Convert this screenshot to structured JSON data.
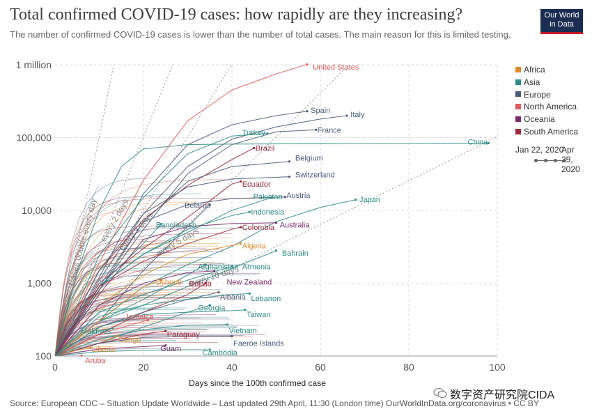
{
  "title": "Total confirmed COVID-19 cases: how rapidly are they increasing?",
  "subtitle": "The number of confirmed COVID-19 cases is lower than the number of total cases. The main reason for this is limited testing.",
  "logo": {
    "line1": "Our World",
    "line2": "in Data"
  },
  "legend": [
    {
      "name": "Africa",
      "color": "#e18b2b"
    },
    {
      "name": "Asia",
      "color": "#2e8c85"
    },
    {
      "name": "Europe",
      "color": "#4c5a7a"
    },
    {
      "name": "North America",
      "color": "#dd5a5a"
    },
    {
      "name": "Oceania",
      "color": "#7a2d6c"
    },
    {
      "name": "South America",
      "color": "#9a2a3b"
    }
  ],
  "timeline": {
    "start": "Jan 22, 2020",
    "end": "Apr 29, 2020"
  },
  "source": "Source: European CDC – Situation Update Worldwide – Last updated 29th April, 11:30 (London time) OurWorldInData.org/coronavirus • CC BY",
  "watermark": "数字资产研究院CIDA",
  "chart_data": {
    "type": "line",
    "title": "Total confirmed COVID-19 cases: how rapidly are they increasing?",
    "xlabel": "Days since the 100th confirmed case",
    "ylabel": "",
    "xlim": [
      0,
      100
    ],
    "ylim": [
      100,
      1000000
    ],
    "yscale": "log",
    "x_ticks": [
      "0",
      "20",
      "40",
      "60",
      "80",
      "100"
    ],
    "x_tick_values": [
      0,
      20,
      40,
      60,
      80,
      100
    ],
    "y_ticks": [
      "100",
      "1,000",
      "10,000",
      "100,000",
      "1 million"
    ],
    "y_tick_values": [
      100,
      1000,
      10000,
      100000,
      1000000
    ],
    "doubling_lines": [
      {
        "label": "Cases double every day",
        "days": 1
      },
      {
        "label": "every 2 days",
        "days": 2
      },
      {
        "label": "every 3 days",
        "days": 3
      },
      {
        "label": "every 5 days",
        "days": 5
      },
      {
        "label": "every 10 days",
        "days": 10
      }
    ],
    "series": [
      {
        "name": "United States",
        "region": "North America",
        "color": "#dd5a5a",
        "x": [
          0,
          10,
          20,
          30,
          40,
          50,
          57
        ],
        "y": [
          100,
          1900,
          26000,
          170000,
          450000,
          750000,
          1010000
        ],
        "label_x": 58,
        "label_y": 940000
      },
      {
        "name": "Spain",
        "region": "Europe",
        "color": "#4c5a7a",
        "x": [
          0,
          10,
          20,
          30,
          40,
          50,
          57
        ],
        "y": [
          100,
          1200,
          17000,
          80000,
          150000,
          200000,
          230000
        ],
        "label_x": 57.5,
        "label_y": 240000
      },
      {
        "name": "Italy",
        "region": "Europe",
        "color": "#4c5a7a",
        "x": [
          0,
          10,
          20,
          30,
          40,
          50,
          60,
          66
        ],
        "y": [
          100,
          1100,
          9000,
          40000,
          95000,
          140000,
          180000,
          200000
        ],
        "label_x": 66.5,
        "label_y": 210000
      },
      {
        "name": "France",
        "region": "Europe",
        "color": "#4c5a7a",
        "x": [
          0,
          10,
          20,
          30,
          40,
          50,
          59
        ],
        "y": [
          100,
          800,
          5500,
          32000,
          80000,
          120000,
          128000
        ],
        "label_x": 59,
        "label_y": 128000
      },
      {
        "name": "Turkey",
        "region": "Asia",
        "color": "#2e8c85",
        "x": [
          0,
          10,
          20,
          30,
          40,
          48
        ],
        "y": [
          100,
          2400,
          15000,
          60000,
          105000,
          114000
        ],
        "label_x": 42,
        "label_y": 118000
      },
      {
        "name": "Brazil",
        "region": "South America",
        "color": "#9a2a3b",
        "x": [
          0,
          10,
          20,
          30,
          40,
          45
        ],
        "y": [
          100,
          1500,
          7500,
          22000,
          50000,
          72000
        ],
        "label_x": 45,
        "label_y": 72000
      },
      {
        "name": "China",
        "region": "Asia",
        "color": "#2e8c85",
        "x": [
          0,
          5,
          10,
          15,
          20,
          30,
          40,
          60,
          80,
          98
        ],
        "y": [
          100,
          1400,
          10000,
          40000,
          70000,
          80000,
          81500,
          82500,
          83000,
          83900
        ],
        "label_x": 93,
        "label_y": 88000
      },
      {
        "name": "Belgium",
        "region": "Europe",
        "color": "#4c5a7a",
        "x": [
          0,
          10,
          20,
          30,
          40,
          53
        ],
        "y": [
          100,
          800,
          7000,
          25000,
          40000,
          47000
        ],
        "label_x": 54,
        "label_y": 53000
      },
      {
        "name": "Switzerland",
        "region": "Europe",
        "color": "#4c5a7a",
        "x": [
          0,
          10,
          20,
          30,
          40,
          53
        ],
        "y": [
          100,
          1500,
          9000,
          21000,
          27000,
          29000
        ],
        "label_x": 54,
        "label_y": 31000
      },
      {
        "name": "Ecuador",
        "region": "South America",
        "color": "#9a2a3b",
        "x": [
          0,
          10,
          20,
          30,
          40,
          42
        ],
        "y": [
          100,
          1000,
          3000,
          8000,
          23000,
          25000
        ],
        "label_x": 42,
        "label_y": 23000
      },
      {
        "name": "Pakistan",
        "region": "Asia",
        "color": "#2e8c85",
        "x": [
          0,
          10,
          20,
          30,
          40,
          49
        ],
        "y": [
          100,
          900,
          2500,
          5000,
          10000,
          15000
        ],
        "label_x": 44.5,
        "label_y": 15500
      },
      {
        "name": "Austria",
        "region": "Europe",
        "color": "#4c5a7a",
        "x": [
          0,
          10,
          20,
          30,
          40,
          52
        ],
        "y": [
          100,
          900,
          7000,
          12000,
          14500,
          15300
        ],
        "label_x": 52,
        "label_y": 16200
      },
      {
        "name": "Japan",
        "region": "Asia",
        "color": "#2e8c85",
        "x": [
          0,
          10,
          20,
          30,
          40,
          50,
          60,
          68
        ],
        "y": [
          100,
          300,
          900,
          1800,
          3200,
          7000,
          11000,
          14000
        ],
        "label_x": 68.5,
        "label_y": 14200
      },
      {
        "name": "Belarus",
        "region": "Europe",
        "color": "#4c5a7a",
        "x": [
          0,
          10,
          20,
          30,
          35
        ],
        "y": [
          100,
          300,
          1500,
          6000,
          12000
        ],
        "label_x": 29,
        "label_y": 11800
      },
      {
        "name": "Indonesia",
        "region": "Asia",
        "color": "#2e8c85",
        "x": [
          0,
          10,
          20,
          30,
          40,
          44
        ],
        "y": [
          100,
          900,
          2500,
          5500,
          8500,
          9500
        ],
        "label_x": 44,
        "label_y": 9600
      },
      {
        "name": "Bangladesh",
        "region": "Asia",
        "color": "#2e8c85",
        "x": [
          0,
          10,
          20,
          24
        ],
        "y": [
          100,
          900,
          3500,
          6500
        ],
        "label_x": 22.5,
        "label_y": 6400
      },
      {
        "name": "Colombia",
        "region": "South America",
        "color": "#9a2a3b",
        "x": [
          0,
          10,
          20,
          30,
          40,
          42
        ],
        "y": [
          100,
          900,
          2000,
          3500,
          5500,
          5900
        ],
        "label_x": 42,
        "label_y": 5900
      },
      {
        "name": "Australia",
        "region": "Oceania",
        "color": "#7a2d6c",
        "x": [
          0,
          10,
          20,
          30,
          40,
          50
        ],
        "y": [
          100,
          700,
          4000,
          6000,
          6600,
          6750
        ],
        "label_x": 50.5,
        "label_y": 6350
      },
      {
        "name": "Algeria",
        "region": "Africa",
        "color": "#e18b2b",
        "x": [
          0,
          10,
          20,
          30,
          40,
          42
        ],
        "y": [
          100,
          500,
          1300,
          2500,
          3300,
          3500
        ],
        "label_x": 42,
        "label_y": 3300
      },
      {
        "name": "Bahrain",
        "region": "Asia",
        "color": "#2e8c85",
        "x": [
          0,
          10,
          20,
          30,
          40,
          50
        ],
        "y": [
          100,
          300,
          500,
          900,
          1600,
          2800
        ],
        "label_x": 51,
        "label_y": 2600
      },
      {
        "name": "Afghanistan",
        "region": "Asia",
        "color": "#2e8c85",
        "x": [
          0,
          10,
          20,
          30,
          34
        ],
        "y": [
          100,
          300,
          600,
          1300,
          1800
        ],
        "label_x": 32,
        "label_y": 1700
      },
      {
        "name": "Armenia",
        "region": "Asia",
        "color": "#2e8c85",
        "x": [
          0,
          10,
          20,
          30,
          40
        ],
        "y": [
          100,
          400,
          700,
          1100,
          1700
        ],
        "label_x": 42,
        "label_y": 1700
      },
      {
        "name": "Djibouti",
        "region": "Africa",
        "color": "#e18b2b",
        "x": [
          0,
          10,
          20,
          24
        ],
        "y": [
          100,
          300,
          900,
          1100
        ],
        "label_x": 22.5,
        "label_y": 1050
      },
      {
        "name": "Bolivia",
        "region": "South America",
        "color": "#9a2a3b",
        "x": [
          0,
          10,
          20,
          30,
          34
        ],
        "y": [
          100,
          200,
          400,
          700,
          1000
        ],
        "label_x": 30,
        "label_y": 1000
      },
      {
        "name": "New Zealand",
        "region": "Oceania",
        "color": "#7a2d6c",
        "x": [
          0,
          10,
          20,
          30,
          36
        ],
        "y": [
          100,
          500,
          1000,
          1400,
          1470
        ],
        "label_x": 38.5,
        "label_y": 1040
      },
      {
        "name": "Albania",
        "region": "Europe",
        "color": "#4c5a7a",
        "x": [
          0,
          10,
          20,
          30,
          37
        ],
        "y": [
          100,
          250,
          400,
          600,
          750
        ],
        "label_x": 37,
        "label_y": 650
      },
      {
        "name": "Lebanon",
        "region": "Asia",
        "color": "#2e8c85",
        "x": [
          0,
          10,
          20,
          30,
          40,
          44
        ],
        "y": [
          100,
          350,
          500,
          600,
          700,
          720
        ],
        "label_x": 44,
        "label_y": 620
      },
      {
        "name": "Georgia",
        "region": "Asia",
        "color": "#2e8c85",
        "x": [
          0,
          10,
          20,
          30,
          35
        ],
        "y": [
          100,
          150,
          250,
          400,
          500
        ],
        "label_x": 32,
        "label_y": 460
      },
      {
        "name": "Taiwan",
        "region": "Asia",
        "color": "#2e8c85",
        "x": [
          0,
          10,
          20,
          30,
          40,
          43
        ],
        "y": [
          100,
          250,
          370,
          400,
          420,
          430
        ],
        "label_x": 43,
        "label_y": 375
      },
      {
        "name": "Jamaica",
        "region": "North America",
        "color": "#dd5a5a",
        "x": [
          0,
          10,
          20,
          21
        ],
        "y": [
          100,
          200,
          300,
          310
        ],
        "label_x": 15.5,
        "label_y": 350
      },
      {
        "name": "Maldives",
        "region": "Asia",
        "color": "#2e8c85",
        "x": [
          0,
          5,
          10,
          13
        ],
        "y": [
          100,
          160,
          220,
          240
        ],
        "label_x": 5.5,
        "label_y": 222
      },
      {
        "name": "Vietnam",
        "region": "Asia",
        "color": "#2e8c85",
        "x": [
          0,
          10,
          20,
          30,
          39
        ],
        "y": [
          100,
          170,
          230,
          265,
          270
        ],
        "label_x": 39,
        "label_y": 225
      },
      {
        "name": "Congo",
        "region": "Africa",
        "color": "#e18b2b",
        "x": [
          0,
          10,
          14
        ],
        "y": [
          100,
          150,
          190
        ],
        "label_x": 14,
        "label_y": 170
      },
      {
        "name": "Paraguay",
        "region": "South America",
        "color": "#9a2a3b",
        "x": [
          0,
          10,
          20,
          25
        ],
        "y": [
          100,
          150,
          200,
          220
        ],
        "label_x": 25,
        "label_y": 200
      },
      {
        "name": "Faeroe Islands",
        "region": "Europe",
        "color": "#4c5a7a",
        "x": [
          0,
          10,
          20,
          30,
          40
        ],
        "y": [
          100,
          150,
          180,
          185,
          187
        ],
        "label_x": 40,
        "label_y": 150
      },
      {
        "name": "Liberia",
        "region": "Africa",
        "color": "#e18b2b",
        "x": [
          0,
          5,
          8
        ],
        "y": [
          100,
          120,
          130
        ],
        "label_x": 8,
        "label_y": 125
      },
      {
        "name": "Guam",
        "region": "Oceania",
        "color": "#7a2d6c",
        "x": [
          0,
          10,
          20,
          25
        ],
        "y": [
          100,
          125,
          135,
          140
        ],
        "label_x": 23.5,
        "label_y": 127
      },
      {
        "name": "Cambodia",
        "region": "Asia",
        "color": "#2e8c85",
        "x": [
          0,
          10,
          20,
          30,
          35
        ],
        "y": [
          100,
          115,
          120,
          122,
          122
        ],
        "label_x": 33,
        "label_y": 112
      },
      {
        "name": "Aruba",
        "region": "North America",
        "color": "#dd5a5a",
        "x": [
          0,
          5,
          6
        ],
        "y": [
          100,
          100,
          101
        ],
        "label_x": 6.5,
        "label_y": 88
      }
    ]
  }
}
